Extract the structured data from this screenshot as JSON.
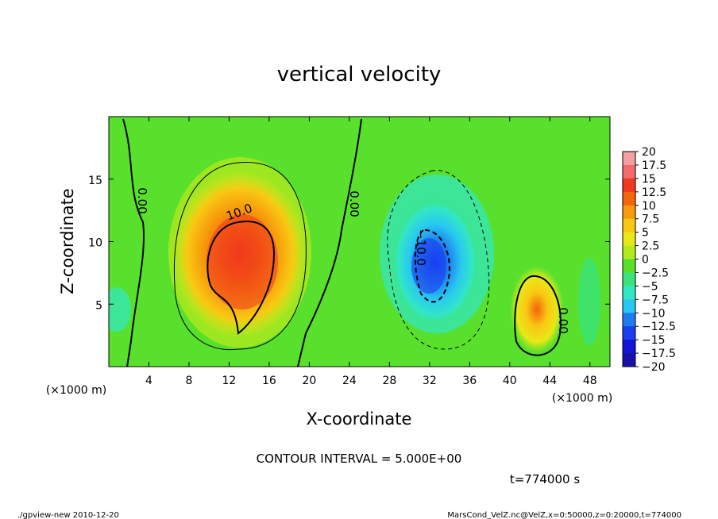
{
  "chart_data": {
    "type": "heatmap",
    "title": "vertical velocity",
    "xlabel": "X-coordinate",
    "ylabel": "Z-coordinate",
    "x_unit": "(×1000 m)",
    "y_unit": "(×1000 m)",
    "xlim": [
      0,
      50
    ],
    "ylim": [
      0,
      20
    ],
    "x_ticks": [
      4,
      8,
      12,
      16,
      20,
      24,
      28,
      32,
      36,
      40,
      44,
      48
    ],
    "y_ticks": [
      5,
      10,
      15
    ],
    "colorbar": {
      "labels": [
        "20",
        "17.5",
        "15",
        "12.5",
        "10",
        "7.5",
        "5",
        "2.5",
        "0",
        "−2.5",
        "−5",
        "−7.5",
        "−10",
        "−12.5",
        "−15",
        "−17.5",
        "−20"
      ],
      "colors": [
        "#f5a0a0",
        "#f36b6b",
        "#f0391e",
        "#f4650c",
        "#f79a0c",
        "#f9c812",
        "#e8e818",
        "#b4ea1d",
        "#58e02c",
        "#3ae47a",
        "#32e7c6",
        "#28c9f0",
        "#1e7bf0",
        "#1a3ff0",
        "#1414d8",
        "#1a10a8",
        "#6a10b8"
      ]
    },
    "contour_labels": [
      "0.00",
      "0.00",
      "10.0",
      "−10.0",
      "0.00"
    ],
    "contour_interval_text": "CONTOUR INTERVAL = 5.000E+00",
    "time_text": "t=774000 s",
    "features": [
      {
        "kind": "updraft",
        "x": 13,
        "z": 8.5,
        "value": 14
      },
      {
        "kind": "downdraft",
        "x": 32,
        "z": 7.5,
        "value": -12
      },
      {
        "kind": "updraft",
        "x": 43,
        "z": 3.5,
        "value": 10
      }
    ]
  },
  "footer": {
    "left": "./gpview-new  2010-12-20",
    "right": "MarsCond_VelZ.nc@VelZ,x=0:50000,z=0:20000,t=774000"
  }
}
